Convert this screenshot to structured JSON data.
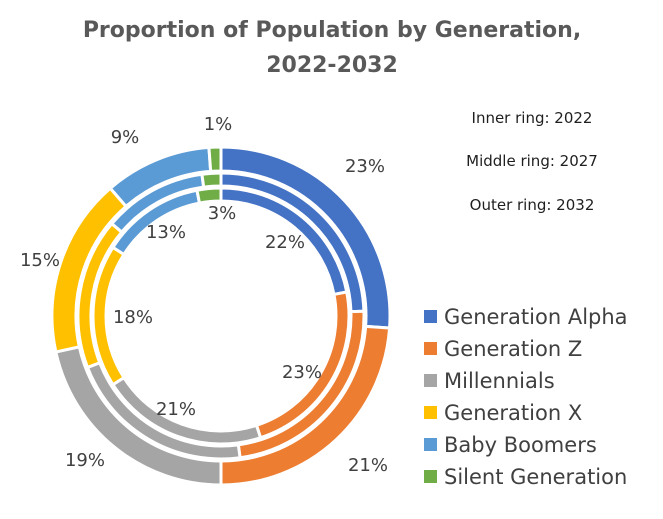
{
  "chart_data": {
    "type": "doughnut",
    "title_lines": [
      "Proportion of Population by Generation,",
      "2022-2032"
    ],
    "notes": [
      "Inner ring: 2022",
      "Middle ring: 2027",
      "Outer ring: 2032"
    ],
    "categories": [
      "Generation Alpha",
      "Generation Z",
      "Millennials",
      "Generation X",
      "Baby Boomers",
      "Silent Generation"
    ],
    "colors": [
      "#4472C4",
      "#ED7D31",
      "#A5A5A5",
      "#FFC000",
      "#5B9BD5",
      "#70AD47"
    ],
    "series": [
      {
        "ring": "inner",
        "values": [
          22,
          23,
          21,
          18,
          13,
          3
        ]
      },
      {
        "ring": "middle",
        "values": [
          23,
          22,
          20,
          16,
          11,
          2
        ]
      },
      {
        "ring": "outer",
        "values": [
          23,
          21,
          19,
          15,
          9,
          1
        ]
      }
    ],
    "visible_labels": {
      "inner": [
        "22%",
        "23%",
        "21%",
        "18%",
        "13%",
        "3%"
      ],
      "outer": [
        "23%",
        "21%",
        "19%",
        "15%",
        "9%",
        "1%"
      ]
    },
    "legend_position": "right"
  }
}
